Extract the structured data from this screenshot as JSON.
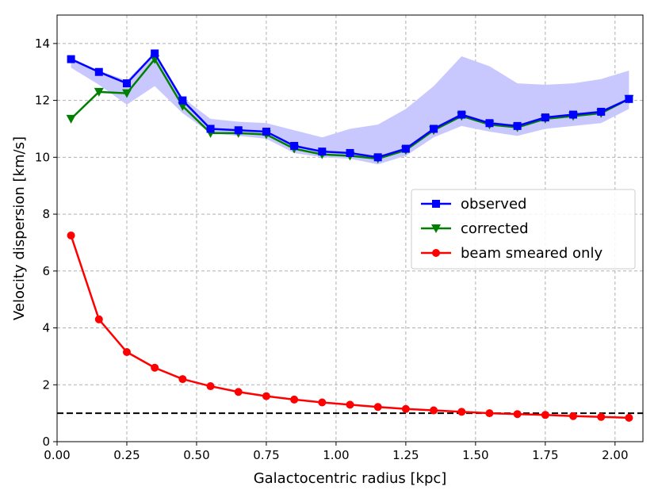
{
  "chart_data": {
    "type": "line",
    "title": "",
    "xlabel": "Galactocentric radius [kpc]",
    "ylabel": "Velocity dispersion [km/s]",
    "xlim": [
      0.0,
      2.1
    ],
    "ylim": [
      0,
      15
    ],
    "grid": true,
    "legend_position": "right",
    "x_ticks": [
      "0.00",
      "0.25",
      "0.50",
      "0.75",
      "1.00",
      "1.25",
      "1.50",
      "1.75",
      "2.00"
    ],
    "x_tick_values": [
      0.0,
      0.25,
      0.5,
      0.75,
      1.0,
      1.25,
      1.5,
      1.75,
      2.0
    ],
    "y_ticks": [
      "0",
      "2",
      "4",
      "6",
      "8",
      "10",
      "12",
      "14"
    ],
    "y_tick_values": [
      0,
      2,
      4,
      6,
      8,
      10,
      12,
      14
    ],
    "x": [
      0.05,
      0.15,
      0.25,
      0.35,
      0.45,
      0.55,
      0.65,
      0.75,
      0.85,
      0.95,
      1.05,
      1.15,
      1.25,
      1.35,
      1.45,
      1.55,
      1.65,
      1.75,
      1.85,
      1.95,
      2.05
    ],
    "series": [
      {
        "name": "observed",
        "color": "#0000ff",
        "marker": "square",
        "values": [
          13.45,
          13.0,
          12.6,
          13.65,
          12.0,
          11.0,
          10.95,
          10.9,
          10.4,
          10.2,
          10.15,
          10.0,
          10.3,
          11.0,
          11.5,
          11.2,
          11.1,
          11.4,
          11.5,
          11.6,
          12.05
        ]
      },
      {
        "name": "corrected",
        "color": "#008000",
        "marker": "triangle-down",
        "values": [
          11.35,
          12.3,
          12.25,
          13.45,
          11.8,
          10.85,
          10.85,
          10.8,
          10.3,
          10.1,
          10.05,
          9.95,
          10.25,
          10.95,
          11.45,
          11.15,
          11.05,
          11.35,
          11.45,
          11.55,
          12.05
        ]
      },
      {
        "name": "beam smeared only",
        "color": "#ff0000",
        "marker": "circle",
        "values": [
          7.25,
          4.3,
          3.15,
          2.6,
          2.2,
          1.95,
          1.75,
          1.6,
          1.48,
          1.38,
          1.3,
          1.22,
          1.15,
          1.1,
          1.05,
          1.0,
          0.97,
          0.94,
          0.9,
          0.87,
          0.84
        ]
      }
    ],
    "uncertainty_band": {
      "color": "#c8c8ff",
      "lower": [
        13.15,
        12.55,
        11.85,
        12.5,
        11.55,
        10.85,
        10.75,
        10.65,
        10.15,
        10.0,
        9.95,
        9.75,
        10.05,
        10.7,
        11.1,
        10.9,
        10.75,
        11.0,
        11.1,
        11.2,
        11.7
      ],
      "upper": [
        13.5,
        13.05,
        12.7,
        13.7,
        12.1,
        11.35,
        11.25,
        11.2,
        10.95,
        10.7,
        11.0,
        11.15,
        11.7,
        12.5,
        13.55,
        13.2,
        12.6,
        12.55,
        12.6,
        12.75,
        13.05
      ]
    },
    "reference_line": {
      "y": 1.0,
      "style": "dashed",
      "color": "#000000"
    }
  }
}
